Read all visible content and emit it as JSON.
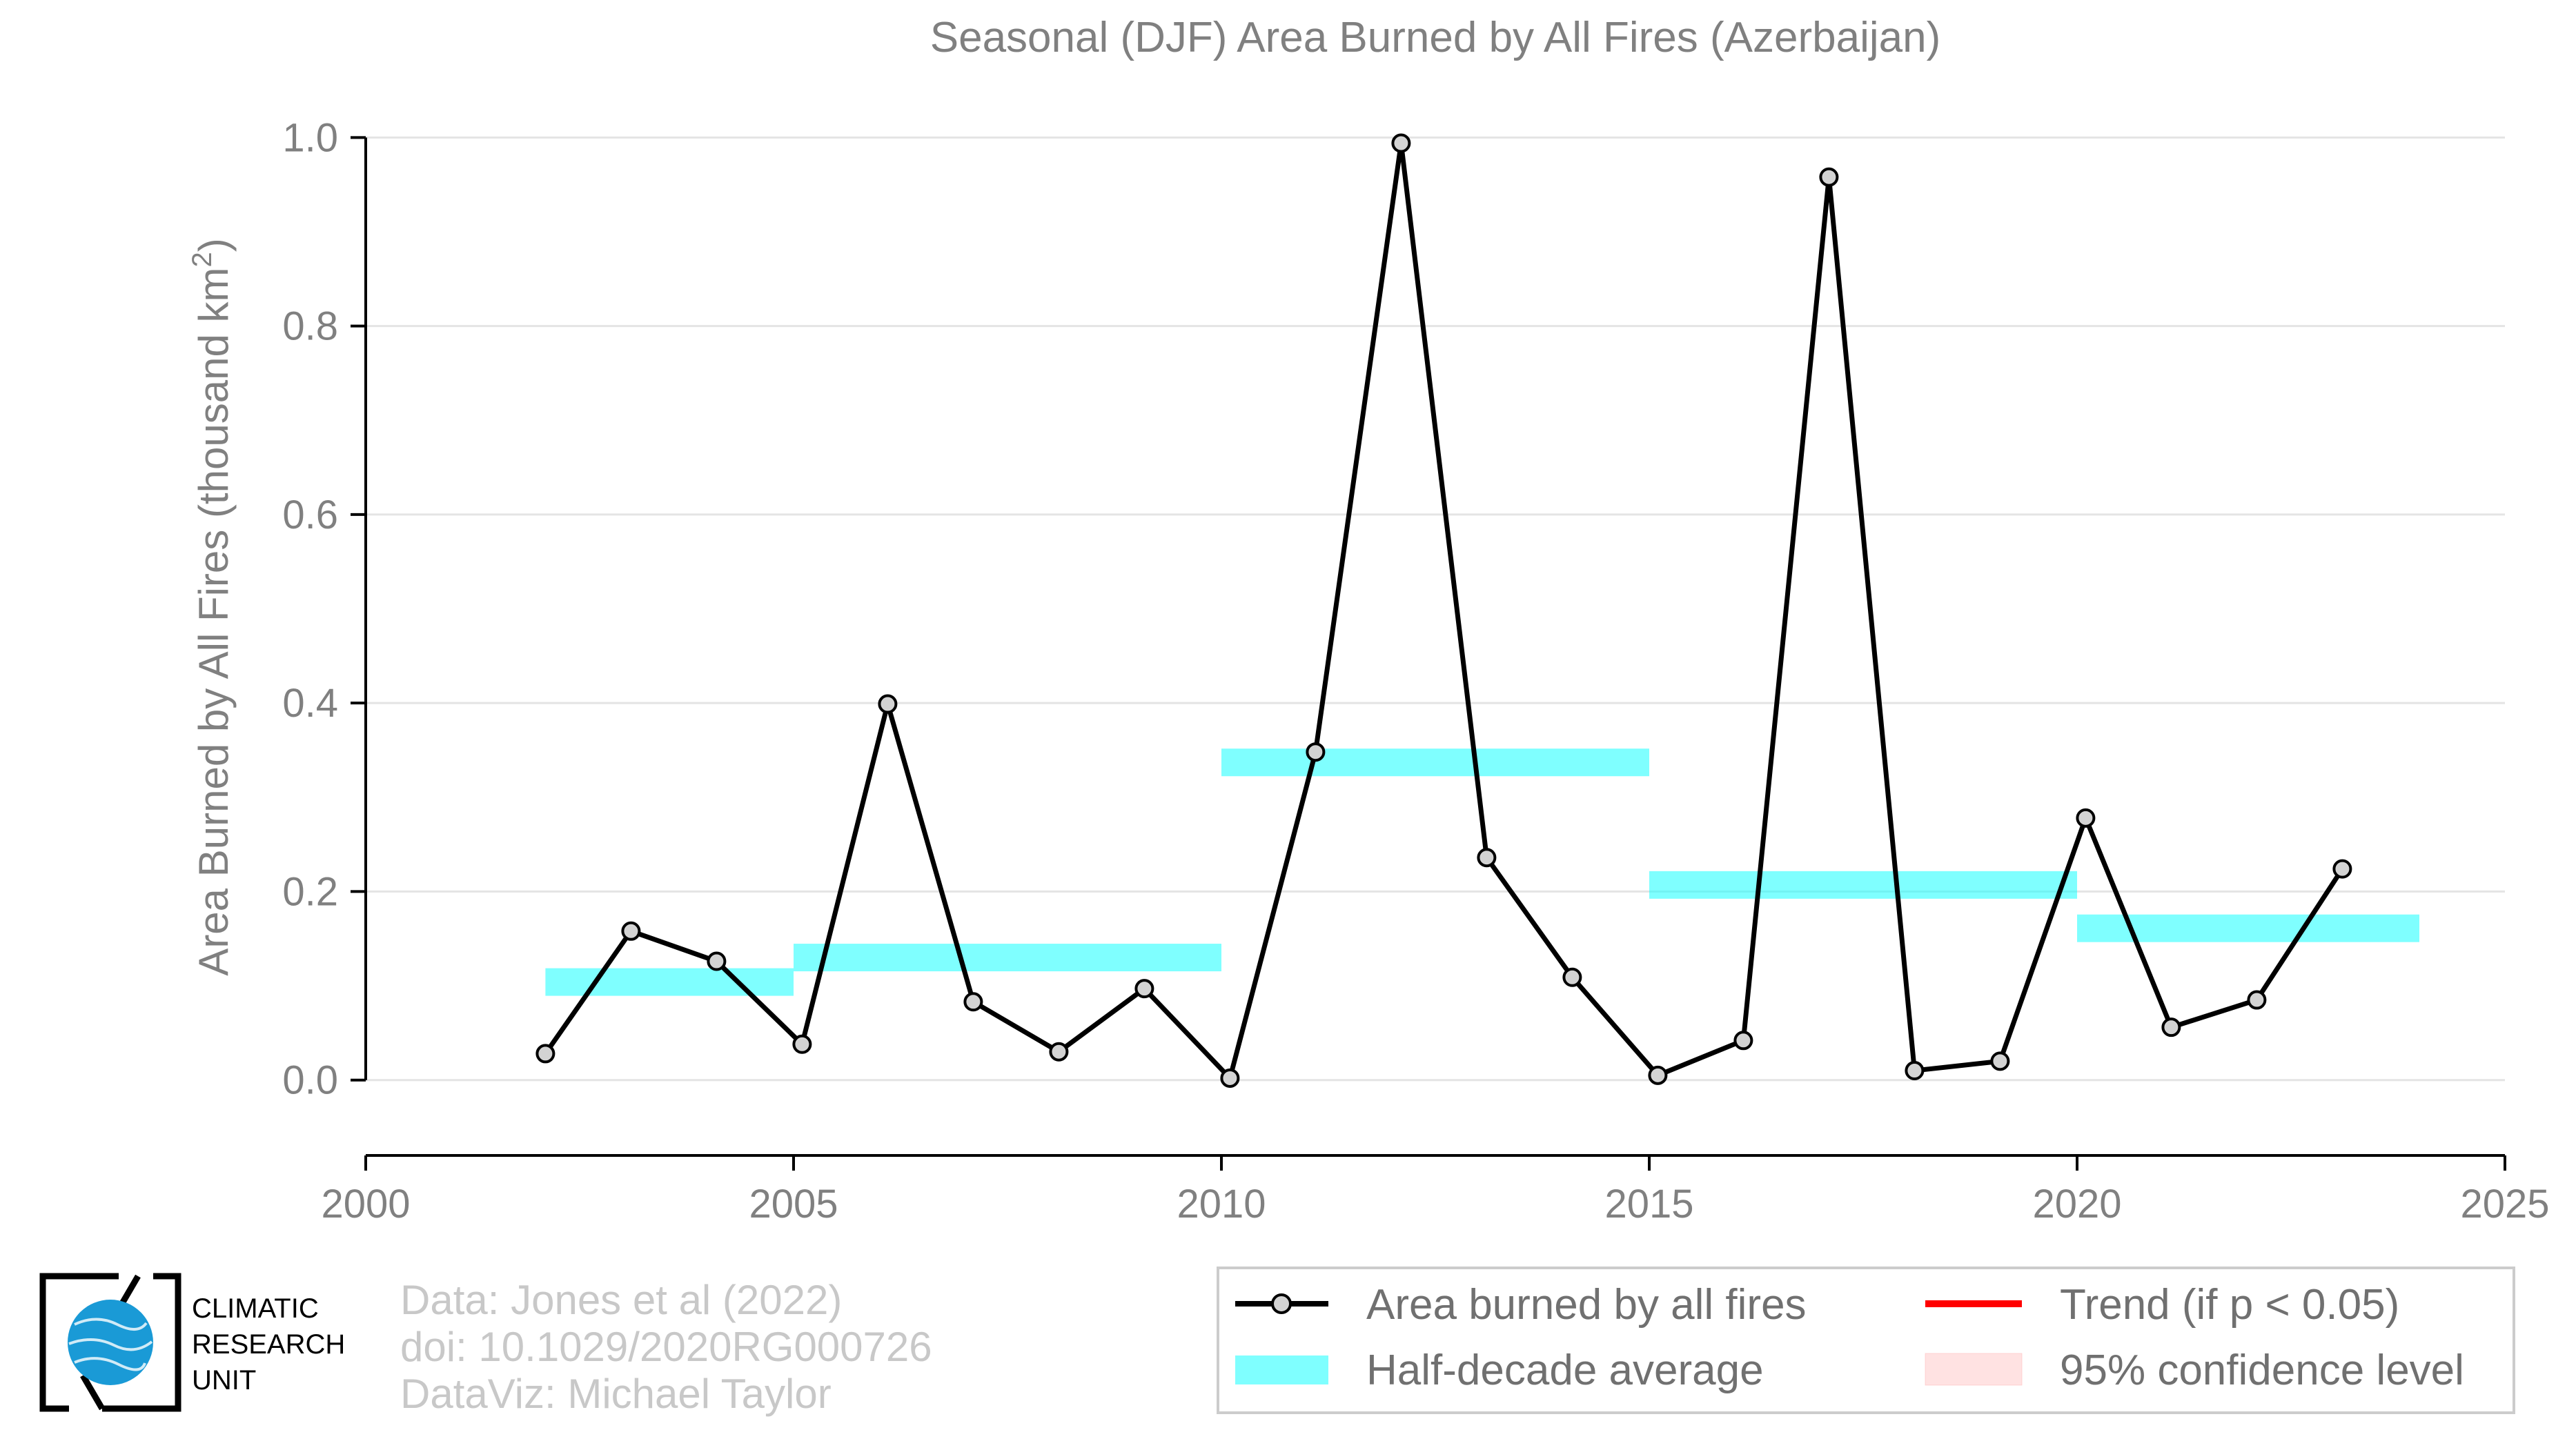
{
  "chart_data": {
    "type": "line",
    "title": "Seasonal (DJF) Area Burned by All Fires (Azerbaijan)",
    "ylabel_main": "Area Burned by All Fires (thousand km",
    "ylabel_sup": "2",
    "ylabel_end": ")",
    "xlim": [
      2000,
      2025
    ],
    "ylim": [
      -0.08,
      1.02
    ],
    "xticks": [
      2000,
      2005,
      2010,
      2015,
      2020,
      2025
    ],
    "xtick_labels": [
      "2000",
      "2005",
      "2010",
      "2015",
      "2020",
      "2025"
    ],
    "yticks": [
      0.0,
      0.2,
      0.4,
      0.6,
      0.8,
      1.0
    ],
    "ytick_labels": [
      "0.0",
      "0.2",
      "0.4",
      "0.6",
      "0.8",
      "1.0"
    ],
    "grid": "horizontal",
    "series": [
      {
        "name": "Area burned by all fires",
        "color": "#000000",
        "marker_color": "#d3d3d3",
        "x": [
          2002.1,
          2003.1,
          2004.1,
          2005.1,
          2006.1,
          2007.1,
          2008.1,
          2009.1,
          2010.1,
          2011.1,
          2012.1,
          2013.1,
          2014.1,
          2015.1,
          2016.1,
          2017.1,
          2018.1,
          2019.1,
          2020.1,
          2021.1,
          2022.1,
          2023.1
        ],
        "values": [
          0.028,
          0.158,
          0.126,
          0.038,
          0.399,
          0.083,
          0.03,
          0.097,
          0.002,
          0.348,
          0.994,
          0.236,
          0.109,
          0.005,
          0.042,
          0.958,
          0.01,
          0.02,
          0.278,
          0.056,
          0.085,
          0.224
        ]
      }
    ],
    "half_decade_average": {
      "name": "Half-decade average",
      "color": "#00ffff",
      "segments": [
        {
          "x0": 2002.1,
          "x1": 2005.0,
          "value": 0.104
        },
        {
          "x0": 2005.0,
          "x1": 2010.0,
          "value": 0.13
        },
        {
          "x0": 2010.0,
          "x1": 2015.0,
          "value": 0.337
        },
        {
          "x0": 2015.0,
          "x1": 2020.0,
          "value": 0.207
        },
        {
          "x0": 2020.0,
          "x1": 2024.0,
          "value": 0.161
        }
      ]
    },
    "legend": {
      "position": "bottom-right",
      "entries": [
        {
          "label": "Area burned by all fires",
          "kind": "line-marker",
          "color": "#000000"
        },
        {
          "label": "Trend (if p < 0.05)",
          "kind": "line",
          "color": "#ff0000"
        },
        {
          "label": "Half-decade average",
          "kind": "band",
          "color": "#00ffff"
        },
        {
          "label": "95% confidence level",
          "kind": "patch",
          "color": "#ffb6b6"
        }
      ]
    }
  },
  "footer": {
    "line1": "Data: Jones et al (2022)",
    "line2": "doi: 10.1029/2020RG000726",
    "line3": "DataViz: Michael Taylor"
  },
  "logo": {
    "line1": "CLIMATIC",
    "line2": "RESEARCH",
    "line3": "UNIT"
  }
}
